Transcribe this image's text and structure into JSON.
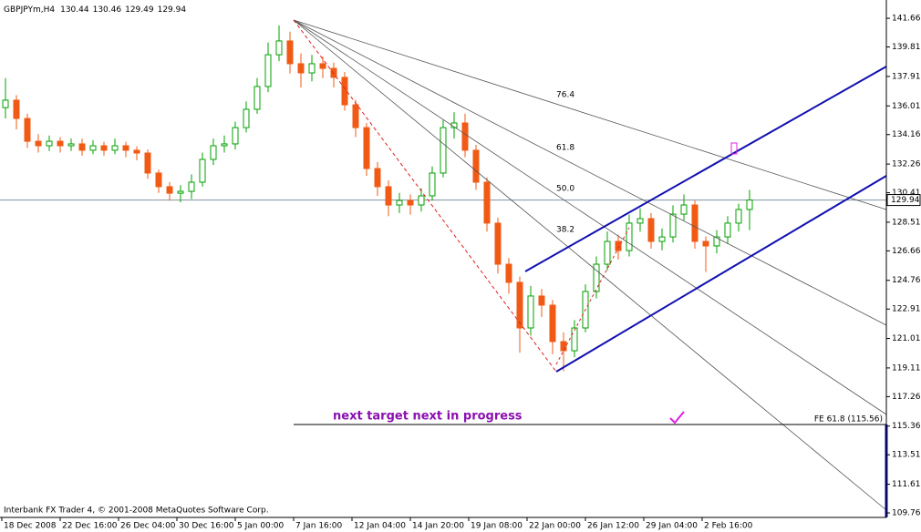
{
  "chart_data": {
    "type": "candlestick",
    "title": "GBPJPYm,H4",
    "header_prices": [
      130.44,
      130.46,
      129.49,
      129.94
    ],
    "footer": "Interbank FX Trader 4, © 2001-2008 MetaQuotes Software Corp.",
    "x_axis_labels": [
      "18 Dec 2008",
      "22 Dec 16:00",
      "26 Dec 04:00",
      "30 Dec 16:00",
      "5 Jan 00:00",
      "7 Jan 16:00",
      "12 Jan 04:00",
      "14 Jan 20:00",
      "19 Jan 08:00",
      "22 Jan 00:00",
      "26 Jan 12:00",
      "29 Jan 04:00",
      "2 Feb 16:00"
    ],
    "ylim": [
      109.47,
      142.84
    ],
    "yticks": [
      141.66,
      139.81,
      137.91,
      136.01,
      134.16,
      132.26,
      130.41,
      128.51,
      126.66,
      124.76,
      122.91,
      121.01,
      119.11,
      117.26,
      115.36,
      113.51,
      111.61,
      109.76
    ],
    "last_price": 129.94,
    "up_color": "#00a000",
    "down_color": "#f05a14",
    "open": [
      135.9,
      136.38,
      135.2,
      133.73,
      133.44,
      133.73,
      133.44,
      133.56,
      133.15,
      133.44,
      133.15,
      133.44,
      133.15,
      132.97,
      131.68,
      130.8,
      130.38,
      130.5,
      131.09,
      132.56,
      133.44,
      133.56,
      134.61,
      135.79,
      137.26,
      139.31,
      140.2,
      138.73,
      138.14,
      138.73,
      138.43,
      137.85,
      136.08,
      134.61,
      131.97,
      130.8,
      129.62,
      129.91,
      129.62,
      130.21,
      131.68,
      134.61,
      134.91,
      133.15,
      131.09,
      128.45,
      125.8,
      124.63,
      121.69,
      123.75,
      123.16,
      120.81,
      120.22,
      121.69,
      124.04,
      125.8,
      127.27,
      126.68,
      128.45,
      128.74,
      127.27,
      127.56,
      129.03,
      129.62,
      127.27,
      126.98,
      127.56,
      128.45,
      129.33
    ],
    "high": [
      137.8,
      136.7,
      135.5,
      134.2,
      134.1,
      134.0,
      133.9,
      133.9,
      133.8,
      133.7,
      133.9,
      133.7,
      133.4,
      133.2,
      131.9,
      131.1,
      130.9,
      131.6,
      133.0,
      133.9,
      134.1,
      135.0,
      136.3,
      137.8,
      140.1,
      141.2,
      140.8,
      139.4,
      139.3,
      139.2,
      138.8,
      138.2,
      136.4,
      134.9,
      132.4,
      131.2,
      130.4,
      130.3,
      130.7,
      132.1,
      135.1,
      135.6,
      135.5,
      133.5,
      131.4,
      128.8,
      126.2,
      125.0,
      124.4,
      124.2,
      123.5,
      121.4,
      122.2,
      124.5,
      126.3,
      127.9,
      127.7,
      129.0,
      129.4,
      129.1,
      128.1,
      129.6,
      130.3,
      129.9,
      127.6,
      128.0,
      128.9,
      129.7,
      130.6
    ],
    "low": [
      135.2,
      134.5,
      133.3,
      133.0,
      133.1,
      133.0,
      133.1,
      132.8,
      132.9,
      132.8,
      132.9,
      132.7,
      132.5,
      131.3,
      130.4,
      129.9,
      129.8,
      130.0,
      130.8,
      132.2,
      133.0,
      133.2,
      134.3,
      135.5,
      136.9,
      138.9,
      138.1,
      137.2,
      137.6,
      137.8,
      137.2,
      135.7,
      134.0,
      131.5,
      130.2,
      128.9,
      129.1,
      129.0,
      129.2,
      129.9,
      131.4,
      133.9,
      132.7,
      130.6,
      127.9,
      125.2,
      123.9,
      120.1,
      121.2,
      122.4,
      120.0,
      118.9,
      119.8,
      121.4,
      123.6,
      125.4,
      126.1,
      126.3,
      127.9,
      126.8,
      126.7,
      127.2,
      128.6,
      126.8,
      125.3,
      126.5,
      127.1,
      127.9,
      128.0
    ],
    "close": [
      136.38,
      135.2,
      133.73,
      133.44,
      133.73,
      133.44,
      133.56,
      133.15,
      133.44,
      133.15,
      133.44,
      133.15,
      132.97,
      131.68,
      130.8,
      130.38,
      130.5,
      131.09,
      132.56,
      133.44,
      133.56,
      134.61,
      135.79,
      137.26,
      139.31,
      140.2,
      138.73,
      138.14,
      138.73,
      138.43,
      137.85,
      136.08,
      134.61,
      131.97,
      130.8,
      129.62,
      129.91,
      129.62,
      130.21,
      131.68,
      134.61,
      134.91,
      133.15,
      131.09,
      128.45,
      125.8,
      124.63,
      121.69,
      123.75,
      123.16,
      120.81,
      120.22,
      121.69,
      124.04,
      125.8,
      127.27,
      126.68,
      128.45,
      128.74,
      127.27,
      127.56,
      129.03,
      129.62,
      127.27,
      126.98,
      127.56,
      128.45,
      129.33,
      129.94
    ],
    "fan_labels": [
      "76.4",
      "61.8",
      "50.0",
      "38.2"
    ],
    "target_label": "FE 61.8 (115.56)",
    "annotation": "next target next in progress"
  }
}
